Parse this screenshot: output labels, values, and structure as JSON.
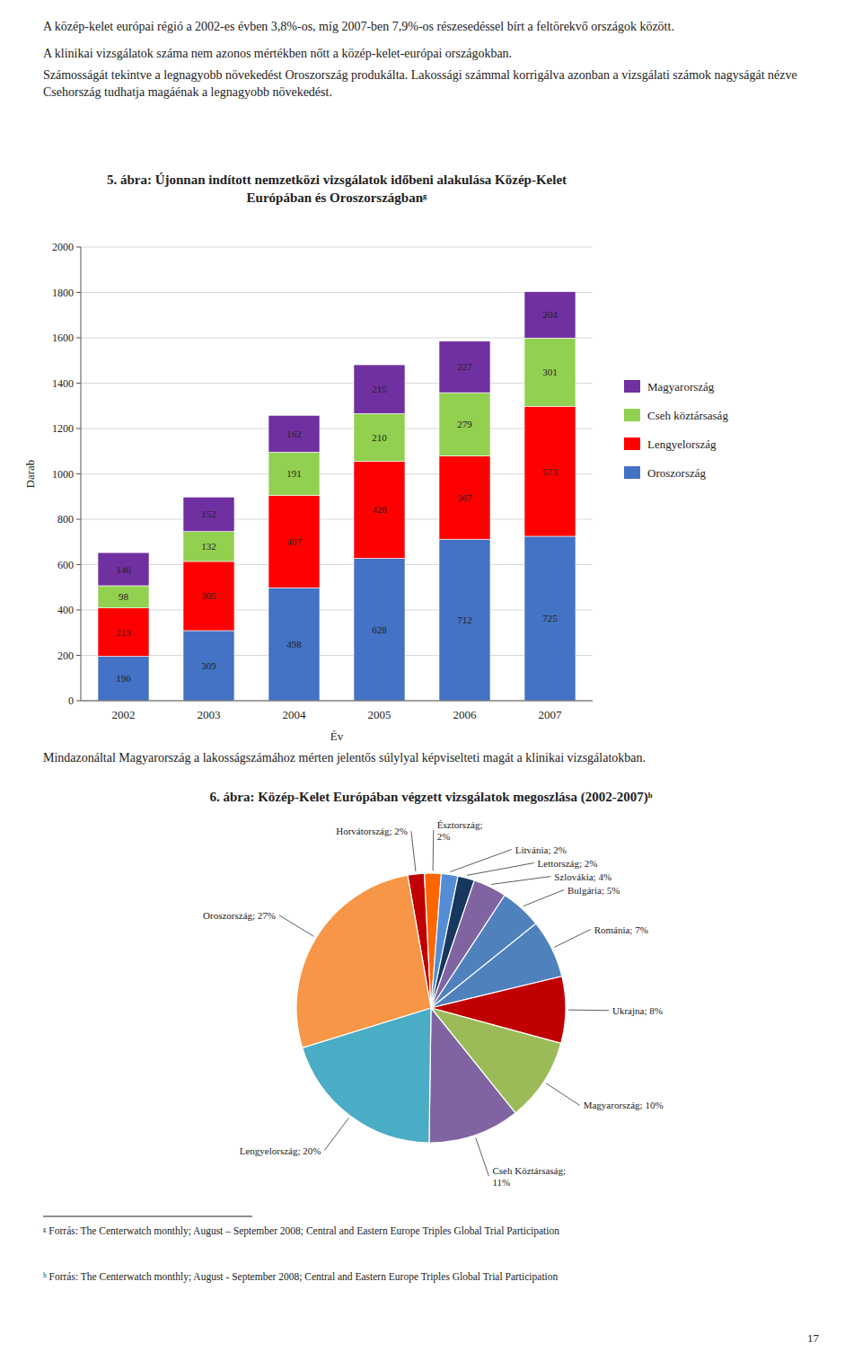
{
  "chart_data": [
    {
      "type": "bar",
      "title": "5. ábra: Újonnan indított nemzetközi vizsgálatok időbeni alakulása Közép-Kelet\nEurópában és Oroszországbanᵍ",
      "annotations": [
        "A közép-kelet európai régió a 2002-es évben 3,8%-os, míg 2007-ben 7,9%-os részesedéssel bírt a feltörekvő országok között.",
        "A klinikai vizsgálatok száma nem azonos mértékben nőtt a közép-kelet-európai országokban.",
        "Számosságát tekintve a legnagyobb növekedést Oroszország produkálta. Lakossági számmal korrigálva azonban a vizsgálati számok nagyságát nézve Csehország tudhatja magáénak a legnagyobb növekedést.",
        "ᵍ Forrás: The Centerwatch monthly; August – September 2008; Central and Eastern Europe Triples Global Trial Participation"
      ],
      "categories": [
        "2002",
        "2003",
        "2004",
        "2005",
        "2006",
        "2007"
      ],
      "series": [
        {
          "name": "Oroszország",
          "color": "#4472C4",
          "values": [
            196,
            309,
            498,
            628,
            712,
            725
          ]
        },
        {
          "name": "Lengyelország",
          "color": "#FF0000",
          "values": [
            213,
            305,
            407,
            428,
            367,
            573
          ]
        },
        {
          "name": "Cseh köztársaság",
          "color": "#92D050",
          "values": [
            98,
            132,
            191,
            210,
            279,
            301
          ]
        },
        {
          "name": "Magyarország",
          "color": "#7030A0",
          "values": [
            146,
            152,
            162,
            215,
            227,
            204
          ]
        }
      ],
      "stacked": true,
      "data_labels": true,
      "xlabel": "Év",
      "ylabel": "Darab",
      "ylim": [
        0,
        2000
      ],
      "yticks": [
        0,
        200,
        400,
        600,
        800,
        1000,
        1200,
        1400,
        1600,
        1800,
        2000
      ],
      "grid": true,
      "legend": "right"
    },
    {
      "type": "pie",
      "title": "6. ábra: Közép-Kelet Európában végzett vizsgálatok megoszlása (2002-2007)ʰ",
      "annotations": [
        "Mindazonáltal Magyarország a lakosságszámához mérten jelentős súlylyal képviselteti magát a klinikai vizsgálatokban.",
        "ʰ Forrás: The Centerwatch monthly; August - September 2008; Central and Eastern Europe Triples Global Trial Participation",
        "17"
      ],
      "values": [
        2,
        2,
        2,
        2,
        4,
        5,
        7,
        8,
        10,
        11,
        20,
        27
      ],
      "value_labels": [
        "Horvátország; 2%",
        "Észtország;\n2%",
        "Litvánia; 2%",
        "Lettország; 2%",
        "Szlovákia; 4%",
        "Bulgária; 5%",
        "Románia; 7%",
        "Ukrajna; 8%",
        "Magyarország; 10%",
        "Cseh Köztársaság;\n11%",
        "Lengyelország; 20%",
        "Oroszország; 27%"
      ],
      "colors": [
        "#C00000",
        "#FF6600",
        "#548DD4",
        "#17375E",
        "#8064A2",
        "#4F81BD",
        "#4F81BD",
        "#C00000",
        "#9BBB59",
        "#8064A2",
        "#4BACC6",
        "#F79646"
      ],
      "data_labels": true
    }
  ]
}
